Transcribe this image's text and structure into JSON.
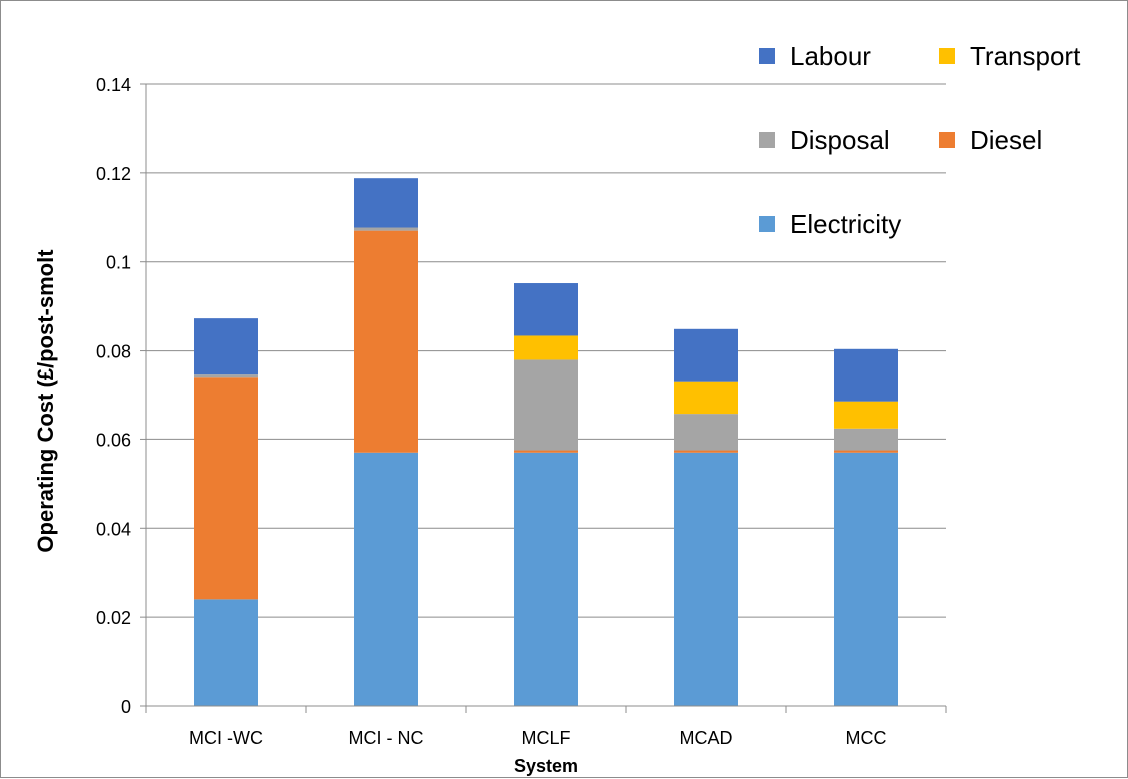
{
  "chart_data": {
    "type": "bar",
    "stacked": true,
    "title": "",
    "xlabel": "System",
    "ylabel": "Operating Cost (£/post-smolt",
    "ylim": [
      0,
      0.14
    ],
    "yticks": [
      "0",
      "0.02",
      "0.04",
      "0.06",
      "0.08",
      "0.1",
      "0.12",
      "0.14"
    ],
    "grid": true,
    "legend_position": "top-right",
    "categories": [
      "MCI -WC",
      "MCI - NC",
      "MCLF",
      "MCAD",
      "MCC"
    ],
    "series": [
      {
        "name": "Electricity",
        "color": "#5B9BD5",
        "values": [
          0.024,
          0.057,
          0.057,
          0.057,
          0.057
        ]
      },
      {
        "name": "Diesel",
        "color": "#ED7D31",
        "values": [
          0.05,
          0.05,
          0.0005,
          0.0005,
          0.0005
        ]
      },
      {
        "name": "Disposal",
        "color": "#A5A5A5",
        "values": [
          0.0007,
          0.0007,
          0.0205,
          0.0082,
          0.0049
        ]
      },
      {
        "name": "Transport",
        "color": "#FFC000",
        "values": [
          0,
          0,
          0.0054,
          0.0073,
          0.0061
        ]
      },
      {
        "name": "Labour",
        "color": "#4472C4",
        "values": [
          0.0126,
          0.0111,
          0.0118,
          0.0119,
          0.0119
        ]
      }
    ],
    "legend_order": [
      "Labour",
      "Transport",
      "Disposal",
      "Diesel",
      "Electricity"
    ]
  }
}
